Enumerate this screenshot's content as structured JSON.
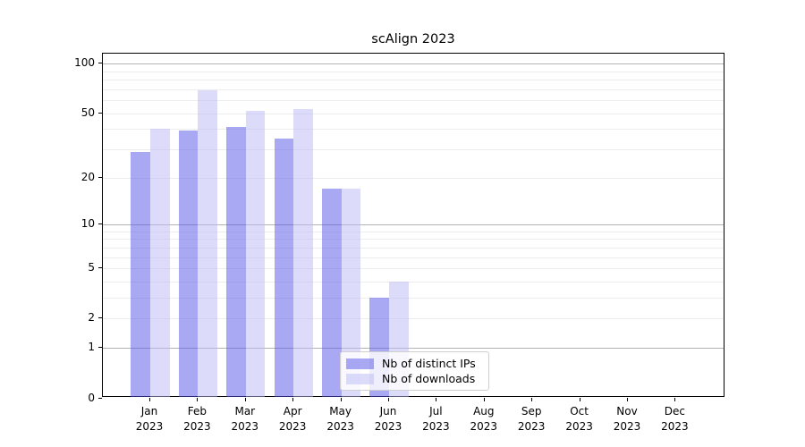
{
  "figure": {
    "title": "scAlign 2023",
    "background_color": "#ffffff"
  },
  "chart_data": {
    "type": "bar",
    "title": "scAlign 2023",
    "categories": [
      "Jan",
      "Feb",
      "Mar",
      "Apr",
      "May",
      "Jun",
      "Jul",
      "Aug",
      "Sep",
      "Oct",
      "Nov",
      "Dec"
    ],
    "year": "2023",
    "series": [
      {
        "name": "Nb of distinct IPs",
        "color": "#5353e7",
        "alpha": 0.5,
        "values": [
          29,
          39,
          41,
          35,
          17,
          3,
          0,
          0,
          0,
          0,
          0,
          0
        ]
      },
      {
        "name": "Nb of downloads",
        "color": "#b9b9f5",
        "alpha": 0.5,
        "values": [
          40,
          69,
          52,
          53,
          17,
          4,
          0,
          0,
          0,
          0,
          0,
          0
        ]
      }
    ],
    "yscale": "log1p",
    "ylim": [
      0,
      115
    ],
    "yticks": [
      0,
      1,
      2,
      5,
      10,
      20,
      50,
      100
    ],
    "gridlines": {
      "major": [
        1,
        10,
        100
      ],
      "minor": [
        2,
        3,
        4,
        5,
        6,
        7,
        8,
        9,
        20,
        30,
        40,
        50,
        60,
        70,
        80,
        90
      ],
      "major_color": "#b3b3b3",
      "minor_color": "#ececec"
    },
    "legend": {
      "position": "lower center",
      "entries": [
        "Nb of distinct IPs",
        "Nb of downloads"
      ]
    }
  }
}
